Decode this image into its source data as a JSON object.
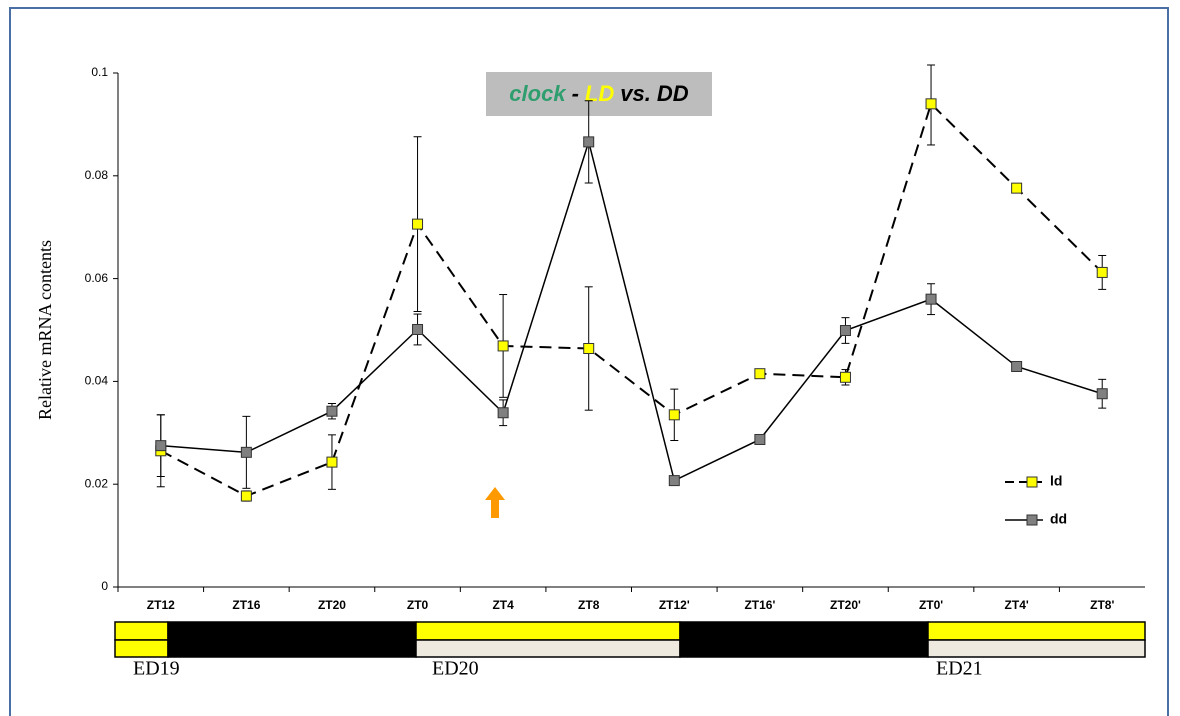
{
  "chart_data": {
    "type": "line",
    "title_parts": [
      {
        "text": "clock",
        "color": "#2e9e6e"
      },
      {
        "text": "-",
        "color": "#000000"
      },
      {
        "text": "LD",
        "color": "#ffff00"
      },
      {
        "text": "vs. DD",
        "color": "#000000"
      }
    ],
    "y_label": "Relative mRNA contents",
    "categories": [
      "ZT12",
      "ZT16",
      "ZT20",
      "ZT0",
      "ZT4",
      "ZT8",
      "ZT12'",
      "ZT16'",
      "ZT20'",
      "ZT0'",
      "ZT4'",
      "ZT8'"
    ],
    "series": [
      {
        "name": "ld",
        "color": "#ffff00",
        "dashed": true,
        "values": [
          0.0265,
          0.0177,
          0.0243,
          0.0706,
          0.0469,
          0.0464,
          0.0335,
          0.0415,
          0.0408,
          0.094,
          0.0776,
          0.0612
        ],
        "errors": [
          0.007,
          0.001,
          0.0053,
          0.017,
          0.01,
          0.012,
          0.005,
          null,
          0.0015,
          0.008,
          null,
          0.0033
        ]
      },
      {
        "name": "dd",
        "color": "#808080",
        "dashed": false,
        "values": [
          0.0275,
          0.0262,
          0.0342,
          0.0501,
          0.0339,
          0.0866,
          0.0207,
          0.0287,
          0.0499,
          0.056,
          0.0429,
          0.0376
        ],
        "errors": [
          0.006,
          0.007,
          0.0015,
          0.003,
          0.0025,
          0.008,
          null,
          null,
          0.0025,
          0.003,
          null,
          0.0028
        ]
      }
    ],
    "ylim": [
      0,
      0.1
    ],
    "yticks": [
      0,
      0.02,
      0.04,
      0.06,
      0.08,
      0.1
    ],
    "day_labels": [
      "ED19",
      "ED20",
      "ED21"
    ]
  }
}
